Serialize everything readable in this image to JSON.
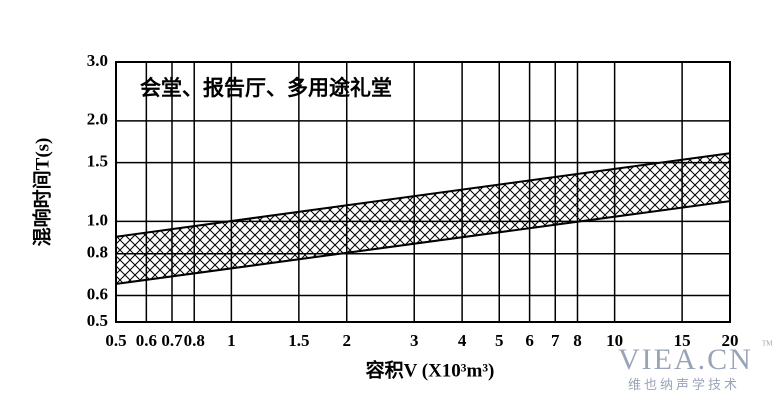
{
  "chart_data": {
    "type": "band",
    "annotation": "会堂、报告厅、多用途礼堂",
    "x_label": "容积V (X10³m³)",
    "y_label": "混响时间T(s)",
    "x": [
      0.5,
      20
    ],
    "upper": [
      0.9,
      1.6
    ],
    "lower": [
      0.65,
      1.15
    ],
    "color": "#000000",
    "log_x": true,
    "log_y": true,
    "grid": true,
    "xlim": [
      0.5,
      20
    ],
    "xticks": [
      0.5,
      0.6,
      0.7,
      0.8,
      1,
      1.5,
      2,
      3,
      4,
      5,
      6,
      7,
      8,
      10,
      15,
      20
    ],
    "ylim": [
      0.5,
      3
    ],
    "yticks": [
      0.5,
      0.6,
      0.8,
      {
        "value": 1,
        "label": "1.0"
      },
      1.5,
      {
        "value": 2,
        "label": "2.0"
      },
      {
        "value": 3,
        "label": "3.0"
      }
    ]
  },
  "watermark": {
    "brand": "VIEA.CN",
    "tm": "TM",
    "subtitle": "维也纳声学技术"
  }
}
